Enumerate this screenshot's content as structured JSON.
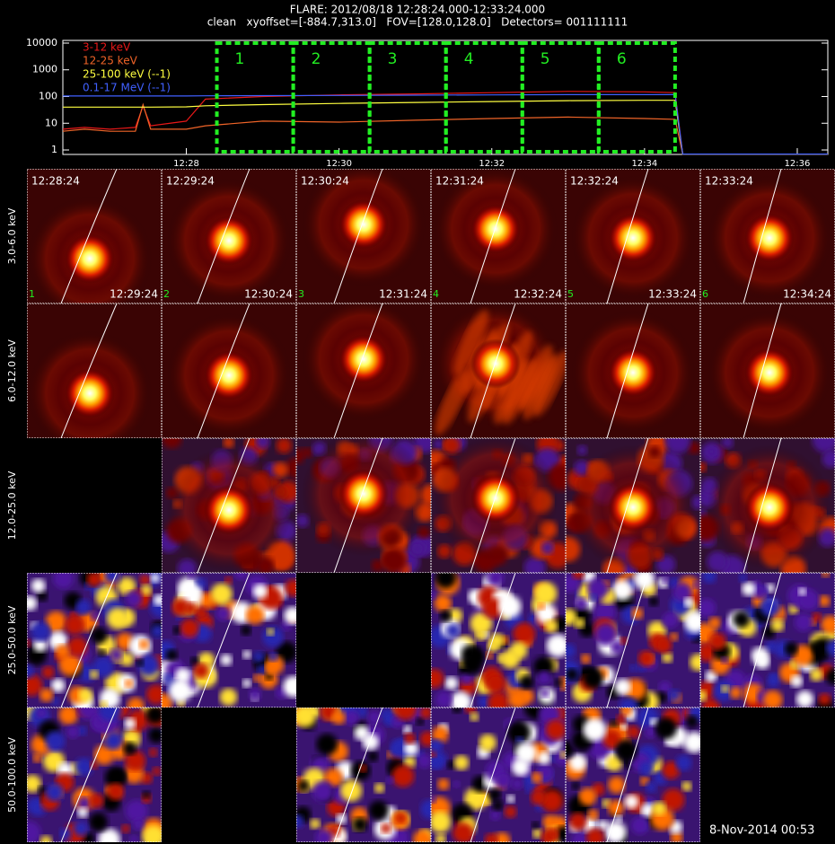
{
  "header": {
    "title": "FLARE: 2012/08/18 12:28:24.000-12:33:24.000",
    "subtitle": "clean   xyoffset=[-884.7,313.0]   FOV=[128.0,128.0]   Detectors= 001111111"
  },
  "chart_data": {
    "type": "line",
    "log_scale": true,
    "x": [
      "12:26:23",
      "12:26:40",
      "12:27:00",
      "12:27:20",
      "12:27:26",
      "12:27:32",
      "12:28:00",
      "12:28:15",
      "12:29:00",
      "12:30:00",
      "12:31:00",
      "12:32:00",
      "12:33:00",
      "12:34:00",
      "12:34:24",
      "12:34:30",
      "12:36:24"
    ],
    "xlim": [
      "12:26:23",
      "12:36:24"
    ],
    "xticks": [
      {
        "value": "12:28:00",
        "label": "12:28"
      },
      {
        "value": "12:30:00",
        "label": "12:30"
      },
      {
        "value": "12:32:00",
        "label": "12:32"
      },
      {
        "value": "12:34:00",
        "label": "12:34"
      },
      {
        "value": "12:36:00",
        "label": "12:36"
      }
    ],
    "ylim": [
      0.68,
      12600
    ],
    "yticks": [
      1,
      10,
      100,
      1000,
      10000
    ],
    "series": [
      {
        "name": "3-12 keV",
        "color": "#e81818",
        "values": [
          6,
          7,
          6,
          7,
          44,
          8,
          12,
          80,
          100,
          115,
          125,
          140,
          155,
          150,
          140,
          0.7,
          0.7
        ]
      },
      {
        "name": "12-25 keV",
        "color": "#f06428",
        "values": [
          5,
          6,
          5,
          5,
          50,
          6,
          6,
          8,
          12,
          11,
          13,
          15,
          17,
          15,
          14,
          0.7,
          0.7
        ]
      },
      {
        "name": "25-100 keV (--1)",
        "color": "#ffff40",
        "values": [
          40,
          40,
          40,
          40,
          40,
          40,
          41,
          45,
          50,
          55,
          60,
          65,
          70,
          72,
          72,
          0.7,
          0.7
        ]
      },
      {
        "name": "0.1-17 MeV (--1)",
        "color": "#4060ff",
        "values": [
          105,
          105,
          105,
          105,
          105,
          105,
          105,
          106,
          108,
          110,
          112,
          115,
          118,
          118,
          118,
          0.7,
          0.7
        ]
      }
    ],
    "intervals": [
      {
        "label": "1",
        "start": "12:28:24",
        "end": "12:29:24"
      },
      {
        "label": "2",
        "start": "12:29:24",
        "end": "12:30:24"
      },
      {
        "label": "3",
        "start": "12:30:24",
        "end": "12:31:24"
      },
      {
        "label": "4",
        "start": "12:31:24",
        "end": "12:32:24"
      },
      {
        "label": "5",
        "start": "12:32:24",
        "end": "12:33:24"
      },
      {
        "label": "6",
        "start": "12:33:24",
        "end": "12:34:24"
      }
    ],
    "interval_color": "#22ee22"
  },
  "image_grid": {
    "rows": [
      {
        "label": "3.0-6.0 keV",
        "images": [
          true,
          true,
          true,
          true,
          true,
          true
        ]
      },
      {
        "label": "6.0-12.0 keV",
        "images": [
          true,
          true,
          true,
          true,
          true,
          true
        ]
      },
      {
        "label": "12.0-25.0 keV",
        "images": [
          false,
          true,
          true,
          true,
          true,
          true
        ]
      },
      {
        "label": "25.0-50.0 keV",
        "images": [
          true,
          true,
          false,
          true,
          true,
          true
        ]
      },
      {
        "label": "50.0-100.0 keV",
        "images": [
          true,
          false,
          true,
          true,
          true,
          false
        ]
      }
    ]
  },
  "footer": {
    "timestamp": "8-Nov-2014 00:53"
  }
}
